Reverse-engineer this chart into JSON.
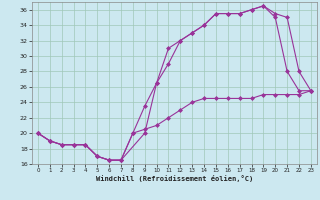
{
  "xlabel": "Windchill (Refroidissement éolien,°C)",
  "background_color": "#cce8f0",
  "grid_color": "#a0c8b8",
  "line_color": "#993399",
  "xlim": [
    -0.5,
    23.5
  ],
  "ylim": [
    16,
    37
  ],
  "yticks": [
    16,
    18,
    20,
    22,
    24,
    26,
    28,
    30,
    32,
    34,
    36
  ],
  "xticks": [
    0,
    1,
    2,
    3,
    4,
    5,
    6,
    7,
    8,
    9,
    10,
    11,
    12,
    13,
    14,
    15,
    16,
    17,
    18,
    19,
    20,
    21,
    22,
    23
  ],
  "line1_x": [
    0,
    1,
    2,
    3,
    4,
    5,
    6,
    7,
    8,
    9,
    10,
    11,
    12,
    13,
    14,
    15,
    16,
    17,
    18,
    19,
    20,
    21,
    22,
    23
  ],
  "line1_y": [
    20,
    19,
    18.5,
    18.5,
    18.5,
    17,
    16.5,
    16.5,
    20,
    23.5,
    26.5,
    31,
    32,
    33,
    34,
    35.5,
    35.5,
    35.5,
    36,
    36.5,
    35,
    28,
    25.5,
    25.5
  ],
  "line2_x": [
    0,
    1,
    2,
    3,
    4,
    5,
    6,
    7,
    9,
    10,
    11,
    12,
    13,
    14,
    15,
    16,
    17,
    18,
    19,
    20,
    21,
    22,
    23
  ],
  "line2_y": [
    20,
    19,
    18.5,
    18.5,
    18.5,
    17,
    16.5,
    16.5,
    20,
    26.5,
    29,
    32,
    33,
    34,
    35.5,
    35.5,
    35.5,
    36,
    36.5,
    35.5,
    35,
    28,
    25.5
  ],
  "line3_x": [
    0,
    1,
    2,
    3,
    4,
    5,
    6,
    7,
    8,
    9,
    10,
    11,
    12,
    13,
    14,
    15,
    16,
    17,
    18,
    19,
    20,
    21,
    22,
    23
  ],
  "line3_y": [
    20,
    19,
    18.5,
    18.5,
    18.5,
    17,
    16.5,
    16.5,
    20,
    20.5,
    21,
    22,
    23,
    24,
    24.5,
    24.5,
    24.5,
    24.5,
    24.5,
    25,
    25,
    25,
    25,
    25.5
  ]
}
